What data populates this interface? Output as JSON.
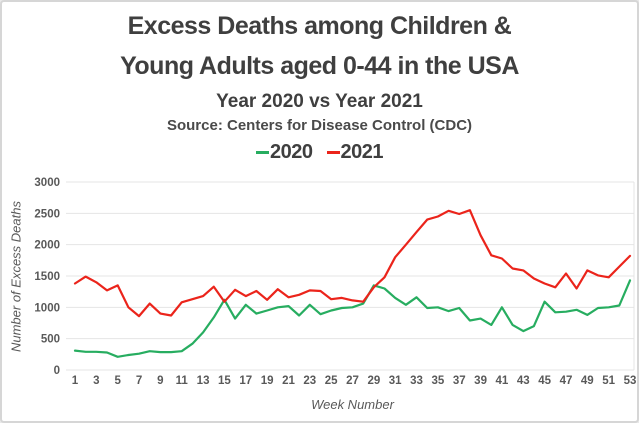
{
  "header": {
    "title_line1": "Excess Deaths among Children &",
    "title_line2": "Young Adults aged 0-44 in the USA",
    "subtitle": "Year 2020 vs Year 2021",
    "source": "Source: Centers for Disease Control (CDC)"
  },
  "legend": {
    "items": [
      {
        "label": "2020",
        "color": "#27ad60"
      },
      {
        "label": "2021",
        "color": "#eb241b"
      }
    ]
  },
  "colors": {
    "series_2020": "#27ad60",
    "series_2021": "#eb241b",
    "gridline": "#e4e4e4",
    "axis_text": "#595959",
    "title_text": "#3f3f3f"
  },
  "chart_data": {
    "type": "line",
    "title": "Excess Deaths among Children & Young Adults aged 0-44 in the USA",
    "subtitle": "Year 2020 vs Year 2021",
    "source": "Source: Centers for Disease Control (CDC)",
    "xlabel": "Week Number",
    "ylabel": "Number of Excess Deaths",
    "ylim": [
      0,
      3000
    ],
    "ytick_step": 500,
    "ytick_labels": [
      "0",
      "500",
      "1000",
      "1500",
      "2000",
      "2500",
      "3000"
    ],
    "xtick_labels": [
      "1",
      "3",
      "5",
      "7",
      "9",
      "11",
      "13",
      "15",
      "17",
      "19",
      "21",
      "23",
      "25",
      "27",
      "29",
      "31",
      "33",
      "35",
      "37",
      "39",
      "41",
      "43",
      "45",
      "47",
      "49",
      "51",
      "53"
    ],
    "grid": "horizontal",
    "legend_position": "top",
    "x": [
      1,
      2,
      3,
      4,
      5,
      6,
      7,
      8,
      9,
      10,
      11,
      12,
      13,
      14,
      15,
      16,
      17,
      18,
      19,
      20,
      21,
      22,
      23,
      24,
      25,
      26,
      27,
      28,
      29,
      30,
      31,
      32,
      33,
      34,
      35,
      36,
      37,
      38,
      39,
      40,
      41,
      42,
      43,
      44,
      45,
      46,
      47,
      48,
      49,
      50,
      51,
      52,
      53
    ],
    "series": [
      {
        "name": "2020",
        "color": "#27ad60",
        "values": [
          310,
          290,
          290,
          280,
          210,
          240,
          260,
          300,
          285,
          285,
          300,
          420,
          600,
          840,
          1120,
          820,
          1040,
          900,
          950,
          1000,
          1020,
          870,
          1040,
          890,
          950,
          990,
          1000,
          1060,
          1350,
          1300,
          1150,
          1040,
          1160,
          990,
          1000,
          940,
          990,
          790,
          820,
          720,
          1000,
          720,
          620,
          700,
          1090,
          920,
          930,
          960,
          880,
          990,
          1000,
          1030,
          1430
        ]
      },
      {
        "name": "2021",
        "color": "#eb241b",
        "values": [
          1380,
          1490,
          1400,
          1270,
          1350,
          1000,
          860,
          1060,
          900,
          870,
          1080,
          1130,
          1180,
          1330,
          1090,
          1280,
          1180,
          1260,
          1120,
          1290,
          1160,
          1200,
          1270,
          1260,
          1130,
          1150,
          1110,
          1090,
          1320,
          1480,
          1800,
          2000,
          2200,
          2400,
          2450,
          2540,
          2490,
          2550,
          2150,
          1830,
          1780,
          1620,
          1590,
          1460,
          1380,
          1320,
          1540,
          1300,
          1590,
          1510,
          1480,
          1650,
          1820
        ]
      }
    ]
  }
}
